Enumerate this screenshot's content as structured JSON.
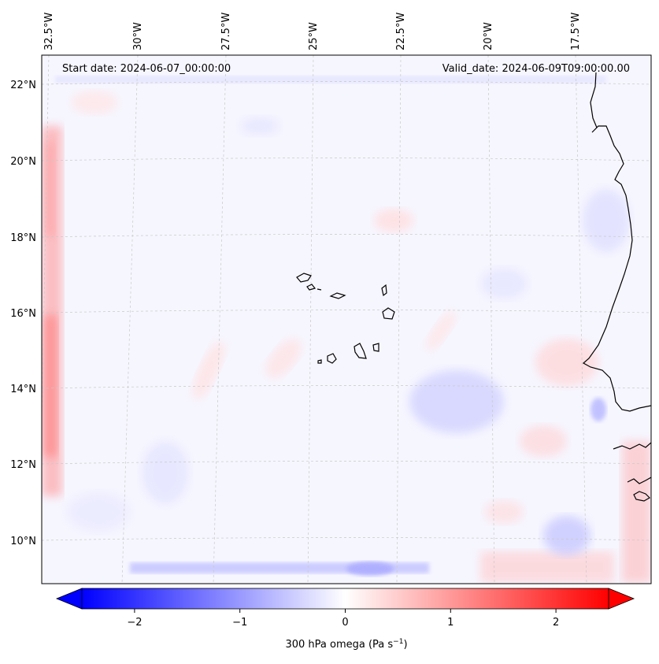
{
  "map": {
    "start_date_label": "Start date: 2024-06-07_00:00:00",
    "valid_date_label": "Valid_date: 2024-06-09T09:00:00.00",
    "lon_ticks": [
      "32.5°W",
      "30°W",
      "27.5°W",
      "25°W",
      "22.5°W",
      "20°W",
      "17.5°W"
    ],
    "lat_ticks": [
      "22°N",
      "20°N",
      "18°N",
      "16°N",
      "14°N",
      "12°N",
      "10°N"
    ],
    "gridlines": true,
    "coastline_color": "#000000",
    "field": "300 hPa omega"
  },
  "colorbar": {
    "ticks": [
      "−2",
      "−1",
      "0",
      "1",
      "2"
    ],
    "tick_values": [
      -2,
      -1,
      0,
      1,
      2
    ],
    "range": [
      -2.5,
      2.5
    ],
    "extend": "both",
    "colormap": "bwr",
    "label": "300 hPa omega (Pa s",
    "label_exp": "−1",
    "label_close": ")"
  }
}
